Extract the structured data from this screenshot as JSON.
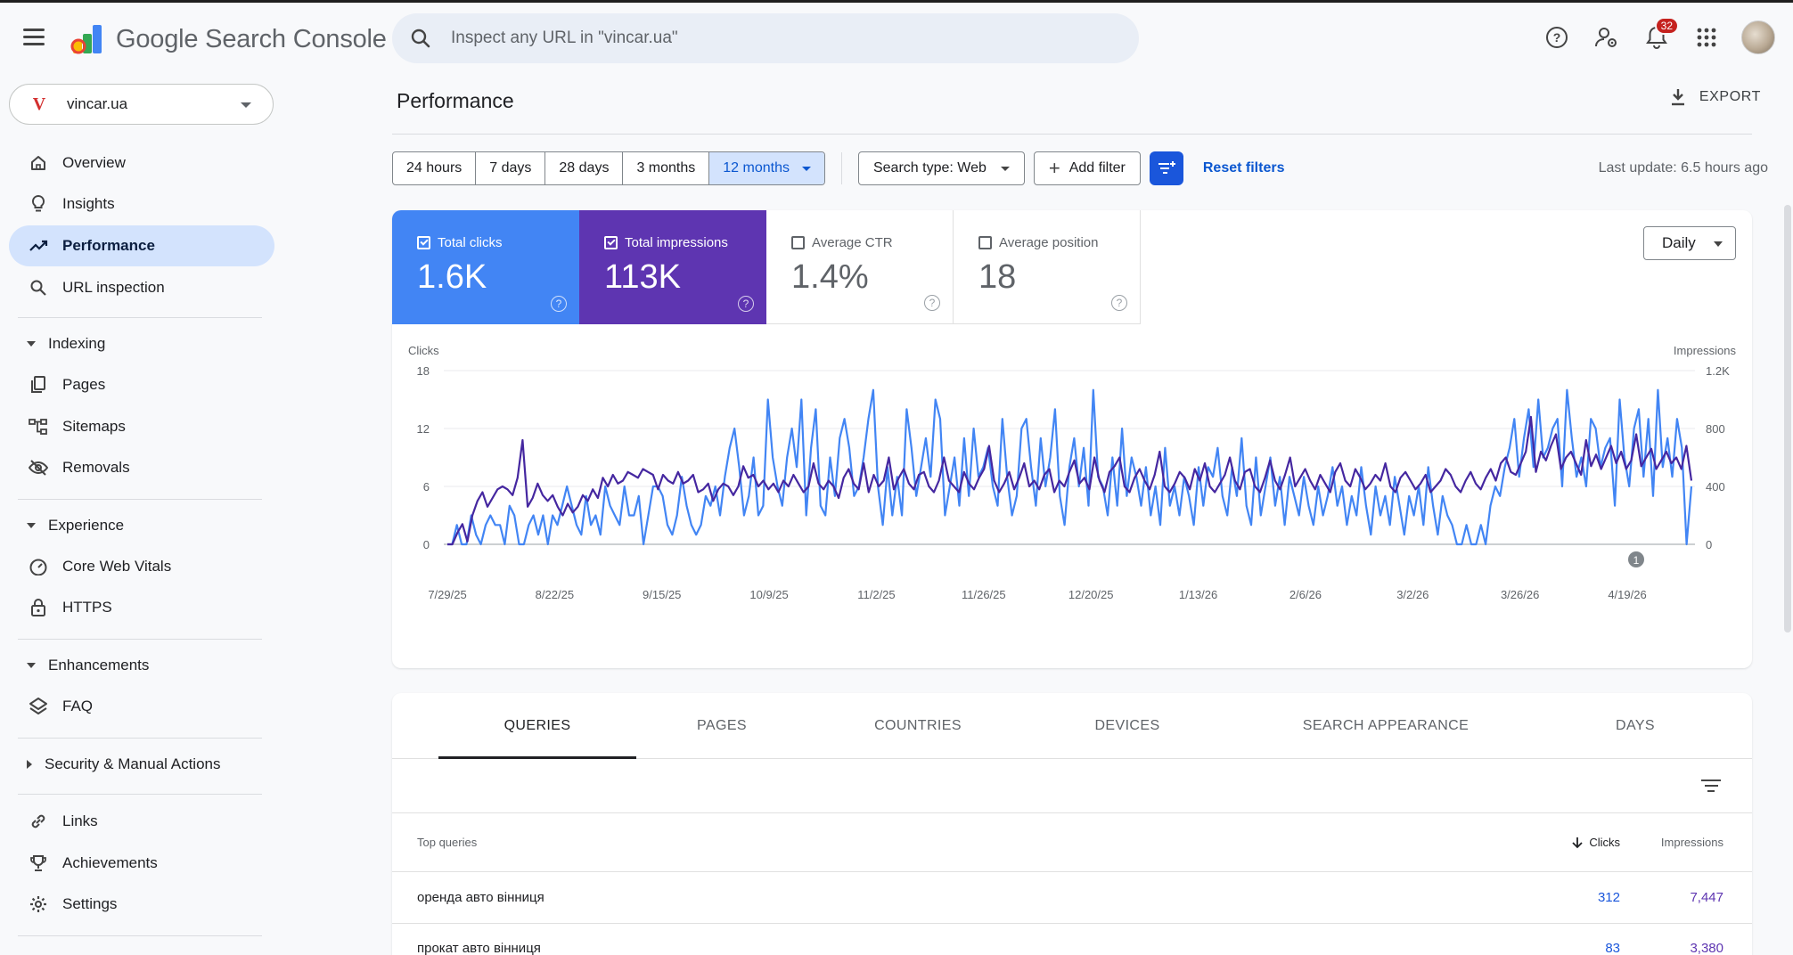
{
  "app": {
    "title": "Google Search Console",
    "search_placeholder": "Inspect any URL in \"vincar.ua\"",
    "notification_count": "32"
  },
  "property": {
    "name": "vincar.ua",
    "logo_letter": "V"
  },
  "sidebar": {
    "items": [
      {
        "label": "Overview",
        "icon": "home-icon"
      },
      {
        "label": "Insights",
        "icon": "lightbulb-icon"
      },
      {
        "label": "Performance",
        "icon": "trending-up-icon",
        "active": true
      },
      {
        "label": "URL inspection",
        "icon": "search-icon"
      }
    ],
    "indexing": {
      "label": "Indexing",
      "items": [
        "Pages",
        "Sitemaps",
        "Removals"
      ]
    },
    "experience": {
      "label": "Experience",
      "items": [
        "Core Web Vitals",
        "HTTPS"
      ]
    },
    "enhancements": {
      "label": "Enhancements",
      "items": [
        "FAQ"
      ]
    },
    "security": {
      "label": "Security & Manual Actions"
    },
    "bottom": [
      "Links",
      "Achievements",
      "Settings"
    ]
  },
  "header": {
    "title": "Performance",
    "export_label": "EXPORT"
  },
  "filters": {
    "ranges": [
      "24 hours",
      "7 days",
      "28 days",
      "3 months",
      "12 months"
    ],
    "selected_range": "12 months",
    "search_type": "Search type: Web",
    "add_filter": "Add filter",
    "reset": "Reset filters",
    "last_update": "Last update: 6.5 hours ago"
  },
  "metrics": [
    {
      "label": "Total clicks",
      "value": "1.6K",
      "checked": true,
      "color": "#4285f4"
    },
    {
      "label": "Total impressions",
      "value": "113K",
      "checked": true,
      "color": "#5e35b1"
    },
    {
      "label": "Average CTR",
      "value": "1.4%",
      "checked": false
    },
    {
      "label": "Average position",
      "value": "18",
      "checked": false
    }
  ],
  "granularity": "Daily",
  "chart_data": {
    "type": "line",
    "left_axis": {
      "label": "Clicks",
      "ticks": [
        "18",
        "12",
        "6",
        "0"
      ],
      "range": [
        0,
        18
      ]
    },
    "right_axis": {
      "label": "Impressions",
      "ticks": [
        "1.2K",
        "800",
        "400",
        "0"
      ],
      "range": [
        0,
        1200
      ]
    },
    "x_ticks": [
      "7/29/25",
      "8/22/25",
      "9/15/25",
      "10/9/25",
      "11/2/25",
      "11/26/25",
      "12/20/25",
      "1/13/26",
      "2/6/26",
      "3/2/26",
      "3/26/26",
      "4/19/26"
    ],
    "annotation": "1",
    "grid": true,
    "series": [
      {
        "name": "Clicks",
        "color": "#4285f4",
        "axis": "left",
        "values": [
          0,
          0,
          2,
          0,
          0,
          3,
          1,
          0,
          2,
          3,
          2,
          2,
          0,
          4,
          3,
          0,
          0,
          2,
          3,
          1,
          3,
          0,
          3,
          2,
          4,
          6,
          4,
          2,
          1,
          5,
          2,
          3,
          1,
          6,
          4,
          3,
          2,
          6,
          3,
          3,
          5,
          0,
          3,
          6,
          6,
          5,
          2,
          1,
          3,
          7,
          4,
          2,
          1,
          2,
          5,
          4,
          6,
          3,
          7,
          10,
          12,
          8,
          3,
          5,
          9,
          3,
          4,
          15,
          9,
          6,
          4,
          9,
          12,
          8,
          15,
          3,
          10,
          14,
          4,
          3,
          9,
          5,
          11,
          13,
          10,
          5,
          6,
          9,
          13,
          16,
          6,
          2,
          8,
          3,
          7,
          3,
          14,
          10,
          5,
          8,
          11,
          7,
          15,
          13,
          3,
          6,
          9,
          4,
          11,
          5,
          12,
          7,
          8,
          10,
          6,
          4,
          13,
          7,
          3,
          5,
          12,
          13,
          8,
          4,
          11,
          6,
          9,
          14,
          5,
          2,
          8,
          11,
          6,
          10,
          4,
          16,
          7,
          6,
          3,
          9,
          4,
          12,
          5,
          9,
          7,
          4,
          8,
          3,
          6,
          2,
          10,
          4,
          6,
          3,
          7,
          5,
          2,
          8,
          4,
          8,
          7,
          10,
          5,
          3,
          8,
          5,
          11,
          4,
          2,
          9,
          3,
          6,
          9,
          4,
          7,
          2,
          7,
          5,
          3,
          7,
          4,
          2,
          6,
          3,
          5,
          8,
          4,
          6,
          2,
          5,
          3,
          8,
          4,
          1,
          6,
          3,
          5,
          2,
          7,
          4,
          1,
          5,
          3,
          6,
          2,
          8,
          4,
          1,
          5,
          3,
          2,
          0,
          0,
          2,
          0,
          0,
          2,
          0,
          4,
          6,
          5,
          8,
          10,
          13,
          7,
          11,
          14,
          8,
          15,
          9,
          10,
          12,
          13,
          6,
          16,
          11,
          7,
          9,
          6,
          13,
          12,
          8,
          10,
          11,
          4,
          15,
          9,
          6,
          12,
          14,
          7,
          13,
          5,
          16,
          8,
          11,
          7,
          13,
          10,
          0,
          6
        ]
      },
      {
        "name": "Impressions",
        "color": "#4527a0",
        "axis": "right",
        "values": [
          0,
          0,
          80,
          140,
          20,
          200,
          300,
          360,
          260,
          320,
          380,
          400,
          380,
          340,
          460,
          720,
          260,
          320,
          420,
          340,
          300,
          340,
          260,
          200,
          280,
          220,
          260,
          340,
          300,
          380,
          320,
          460,
          400,
          480,
          420,
          440,
          500,
          480,
          460,
          520,
          500,
          480,
          380,
          480,
          440,
          420,
          500,
          420,
          440,
          480,
          360,
          380,
          420,
          300,
          380,
          420,
          400,
          340,
          400,
          540,
          460,
          480,
          400,
          440,
          380,
          420,
          360,
          440,
          400,
          480,
          420,
          360,
          400,
          560,
          420,
          380,
          440,
          400,
          320,
          460,
          520,
          420,
          380,
          560,
          360,
          480,
          400,
          440,
          600,
          380,
          460,
          520,
          420,
          380,
          480,
          500,
          400,
          360,
          440,
          600,
          440,
          400,
          360,
          500,
          420,
          380,
          460,
          520,
          680,
          440,
          360,
          420,
          500,
          380,
          460,
          560,
          400,
          440,
          380,
          480,
          520,
          360,
          440,
          400,
          500,
          580,
          420,
          460,
          380,
          600,
          440,
          360,
          500,
          540,
          600,
          400,
          360,
          460,
          520,
          440,
          380,
          480,
          640,
          400,
          360,
          420,
          500,
          460,
          380,
          520,
          440,
          560,
          400,
          360,
          420,
          480,
          600,
          440,
          380,
          500,
          520,
          400,
          360,
          460,
          580,
          440,
          380,
          480,
          600,
          400,
          460,
          520,
          440,
          380,
          480,
          420,
          360,
          500,
          560,
          440,
          400,
          520,
          460,
          380,
          420,
          480,
          440,
          560,
          400,
          360,
          460,
          500,
          440,
          380,
          420,
          480,
          360,
          400,
          440,
          520,
          480,
          400,
          360,
          440,
          500,
          420,
          380,
          460,
          520,
          440,
          560,
          600,
          500,
          480,
          560,
          640,
          880,
          500,
          640,
          580,
          680,
          760,
          520,
          600,
          640,
          560,
          480,
          720,
          540,
          620,
          520,
          600,
          680,
          560,
          640,
          520,
          580,
          760,
          540,
          600,
          660,
          520,
          580,
          640,
          560,
          600,
          520,
          680,
          440
        ]
      }
    ]
  },
  "table": {
    "tabs": [
      "QUERIES",
      "PAGES",
      "COUNTRIES",
      "DEVICES",
      "SEARCH APPEARANCE",
      "DAYS"
    ],
    "active_tab": "QUERIES",
    "headers": {
      "query": "Top queries",
      "clicks": "Clicks",
      "impressions": "Impressions"
    },
    "rows": [
      {
        "query": "оренда авто вінниця",
        "clicks": "312",
        "impressions": "7,447"
      },
      {
        "query": "прокат авто вінниця",
        "clicks": "83",
        "impressions": "3,380"
      }
    ]
  }
}
